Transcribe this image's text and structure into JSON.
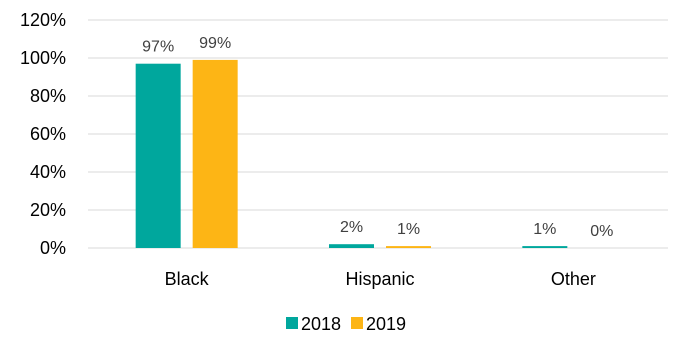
{
  "chart_data": {
    "type": "bar",
    "title": "",
    "xlabel": "",
    "ylabel": "",
    "categories": [
      "Black",
      "Hispanic",
      "Other"
    ],
    "series": [
      {
        "name": "2018",
        "values": [
          97,
          2,
          1
        ],
        "labels": [
          "97%",
          "2%",
          "1%"
        ],
        "color": "#00A79D"
      },
      {
        "name": "2019",
        "values": [
          99,
          1,
          0
        ],
        "labels": [
          "99%",
          "1%",
          "0%"
        ],
        "color": "#FDB515"
      }
    ],
    "ylim": [
      0,
      120
    ],
    "yticks": [
      0,
      20,
      40,
      60,
      80,
      100,
      120
    ],
    "ytick_labels": [
      "0%",
      "20%",
      "40%",
      "60%",
      "80%",
      "100%",
      "120%"
    ],
    "grid": true,
    "gridline_color": "#D9D9D9",
    "legend_position": "bottom-center"
  }
}
